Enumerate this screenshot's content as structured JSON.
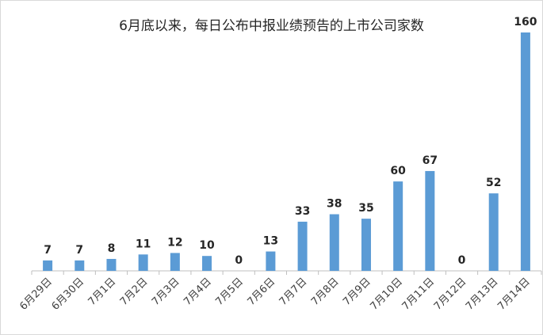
{
  "chart_data": {
    "type": "bar",
    "title": "6月底以来，每日公布中报业绩预告的上市公司家数",
    "categories": [
      "6月29日",
      "6月30日",
      "7月1日",
      "7月2日",
      "7月3日",
      "7月4日",
      "7月5日",
      "7月6日",
      "7月7日",
      "7月8日",
      "7月9日",
      "7月10日",
      "7月11日",
      "7月12日",
      "7月13日",
      "7月14日"
    ],
    "values": [
      7,
      7,
      8,
      11,
      12,
      10,
      0,
      13,
      33,
      38,
      35,
      60,
      67,
      0,
      52,
      160
    ],
    "ylim": [
      0,
      160
    ],
    "grid": false,
    "legend": "none",
    "xlabel": "",
    "ylabel": "",
    "bar_color": "#5b9bd5"
  }
}
